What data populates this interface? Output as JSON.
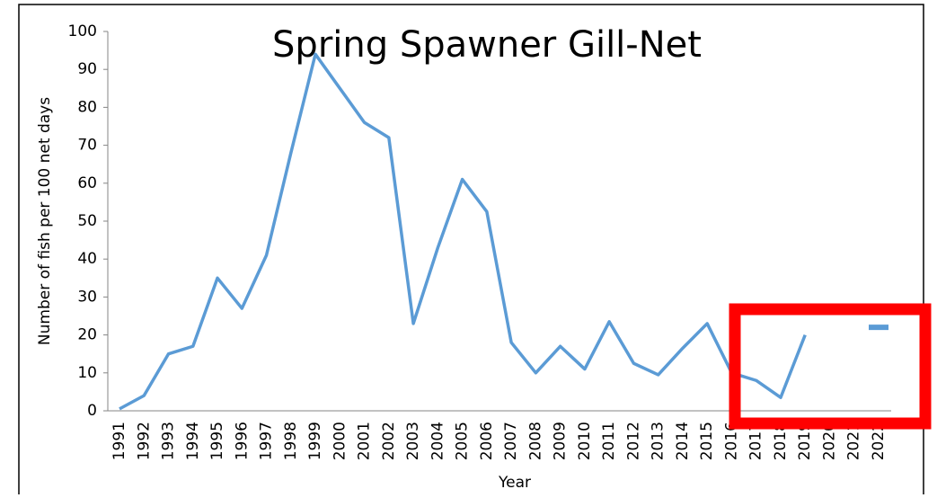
{
  "chart_data": {
    "type": "line",
    "title": "Spring Spawner Gill-Net",
    "x_label": "Year",
    "y_label": "Number of fish per 100 net days",
    "categories": [
      "1991",
      "1992",
      "1993",
      "1994",
      "1995",
      "1996",
      "1997",
      "1998",
      "1999",
      "2000",
      "2001",
      "2002",
      "2003",
      "2004",
      "2005",
      "2006",
      "2007",
      "2008",
      "2009",
      "2010",
      "2011",
      "2012",
      "2013",
      "2014",
      "2015",
      "2016",
      "2017",
      "2018",
      "2019",
      "2020",
      "2021",
      "2022"
    ],
    "series": [
      {
        "name": "Spring Spawner Gill-Net",
        "color": "#5b9bd5",
        "values": [
          0.5,
          4,
          15,
          17,
          35,
          27,
          41,
          68,
          94,
          85,
          76,
          72,
          23,
          43,
          61,
          52.5,
          18,
          10,
          17,
          11,
          23.5,
          12.5,
          9.5,
          16.5,
          23,
          10,
          8,
          3.5,
          20,
          null,
          null,
          22
        ]
      }
    ],
    "ylim": [
      0,
      100
    ],
    "yticks": [
      0,
      10,
      20,
      30,
      40,
      50,
      60,
      70,
      80,
      90,
      100
    ],
    "grid": false
  }
}
